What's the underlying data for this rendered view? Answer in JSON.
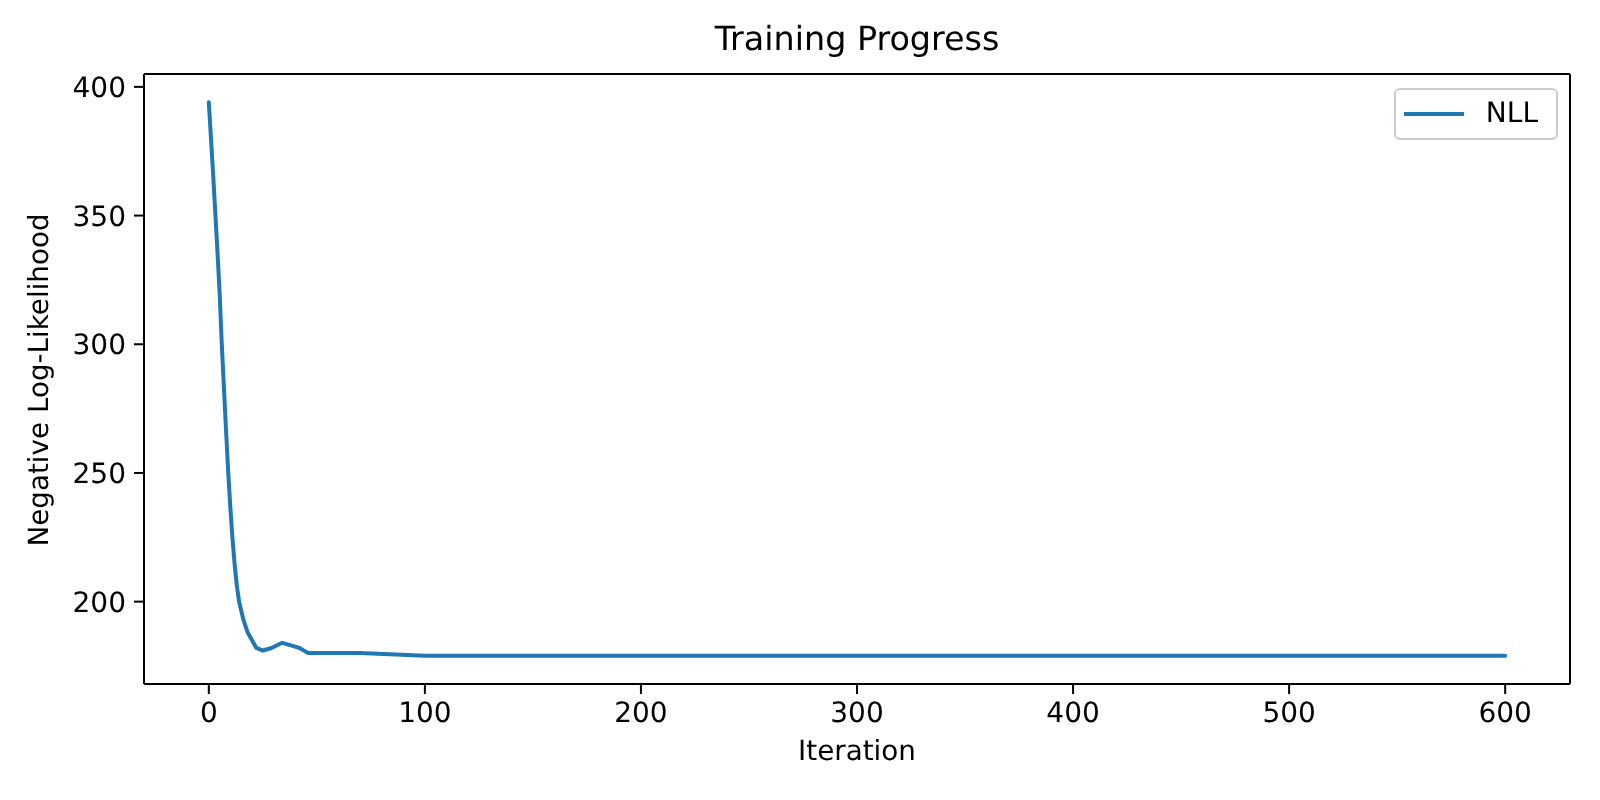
{
  "chart_data": {
    "type": "line",
    "title": "Training Progress",
    "xlabel": "Iteration",
    "ylabel": "Negative Log-Likelihood",
    "x": [
      0,
      1,
      2,
      3,
      4,
      5,
      6,
      7,
      8,
      9,
      10,
      11,
      12,
      13,
      14,
      16,
      18,
      20,
      22,
      25,
      29,
      34,
      38,
      42,
      46,
      50,
      60,
      70,
      100,
      150,
      200,
      300,
      400,
      500,
      600
    ],
    "series": [
      {
        "name": "NLL",
        "color": "#1f77b4",
        "values": [
          394,
          380,
          366,
          351,
          336,
          320,
          300,
          283,
          266,
          250,
          236,
          224,
          214,
          206,
          200,
          193,
          188,
          185,
          182,
          181,
          182,
          184,
          183,
          182,
          180,
          180,
          180,
          180,
          179,
          179,
          179,
          179,
          179,
          179,
          179
        ]
      }
    ],
    "xlim": [
      -30,
      630
    ],
    "xticks": [
      0,
      100,
      200,
      300,
      400,
      500,
      600
    ],
    "ylim": [
      168,
      405
    ],
    "yticks": [
      200,
      250,
      300,
      350,
      400
    ],
    "legend": "top right"
  }
}
